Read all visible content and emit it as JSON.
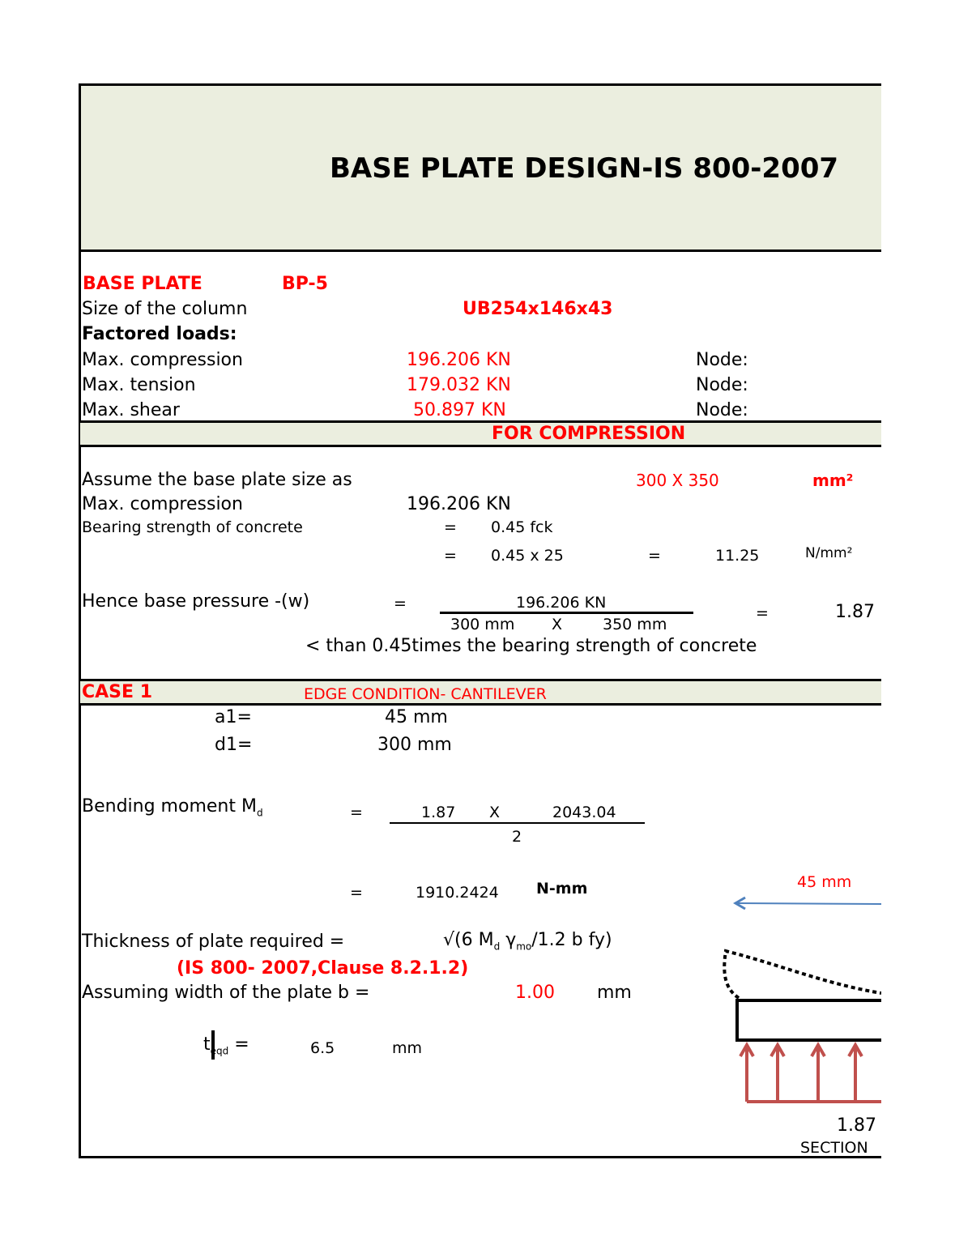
{
  "title": "BASE PLATE DESIGN-IS 800-2007",
  "base_plate": {
    "label": "BASE PLATE",
    "id": "BP-5"
  },
  "column": {
    "label": "Size of the column",
    "value": "UB254x146x43"
  },
  "factored_loads": "Factored loads:",
  "loads": [
    {
      "label": "Max. compression",
      "value": "196.206 KN",
      "node": "Node:"
    },
    {
      "label": "Max. tension",
      "value": "179.032 KN",
      "node": "Node:"
    },
    {
      "label": "Max. shear",
      "value": "50.897 KN",
      "node": "Node:"
    }
  ],
  "compression": {
    "heading": "FOR COMPRESSION",
    "assume_label": "Assume the base plate size as",
    "assume_value": "300 X 350",
    "assume_unit": "mm²",
    "maxc_label": "Max. compression",
    "maxc_value": "196.206 KN",
    "bearing_label": "Bearing strength of concrete",
    "eq": "=",
    "bearing_formula": "0.45 fck",
    "bearing_calc": "0.45 x  25",
    "bearing_value": "11.25",
    "bearing_unit": "N/mm²",
    "pressure_label": "Hence base pressure -(w)",
    "numerator": "196.206 KN",
    "den_a": "300 mm",
    "den_x": "X",
    "den_b": "350 mm",
    "pressure_value": "1.87",
    "note": "< than 0.45times the bearing strength of concrete"
  },
  "case1": {
    "label": "CASE 1",
    "condition": "EDGE CONDITION- CANTILEVER",
    "a1_label": "a1=",
    "a1_value": "45 mm",
    "d1_label": "d1=",
    "d1_value": "300 mm",
    "bm_label": "Bending moment M",
    "bm_sub": "d",
    "bm_a": "1.87",
    "bm_x": "X",
    "bm_b": "2043.04",
    "bm_den": "2",
    "bm_value": "1910.2424",
    "bm_unit": "N-mm",
    "thk_label": "Thickness of plate required =",
    "thk_formula_a": "√(6 M",
    "thk_formula_sub1": "d",
    "thk_formula_b": " γ",
    "thk_formula_sub2": "mo",
    "thk_formula_c": "/1.2 b fy)",
    "clause": "(IS 800- 2007,Clause 8.2.1.2)",
    "width_label": "Assuming  width of the plate b =",
    "width_value": "1.00",
    "width_unit": "mm",
    "treq_label": "t",
    "treq_sub": "eqd",
    "treq_eq": "=",
    "treq_value": "6.5",
    "treq_unit": "mm"
  },
  "diagram": {
    "dim_label": "45 mm",
    "pressure_label": "1.87",
    "caption": "SECTION",
    "arrow_color": "#4f81bd",
    "pressure_color": "#c0504d"
  }
}
